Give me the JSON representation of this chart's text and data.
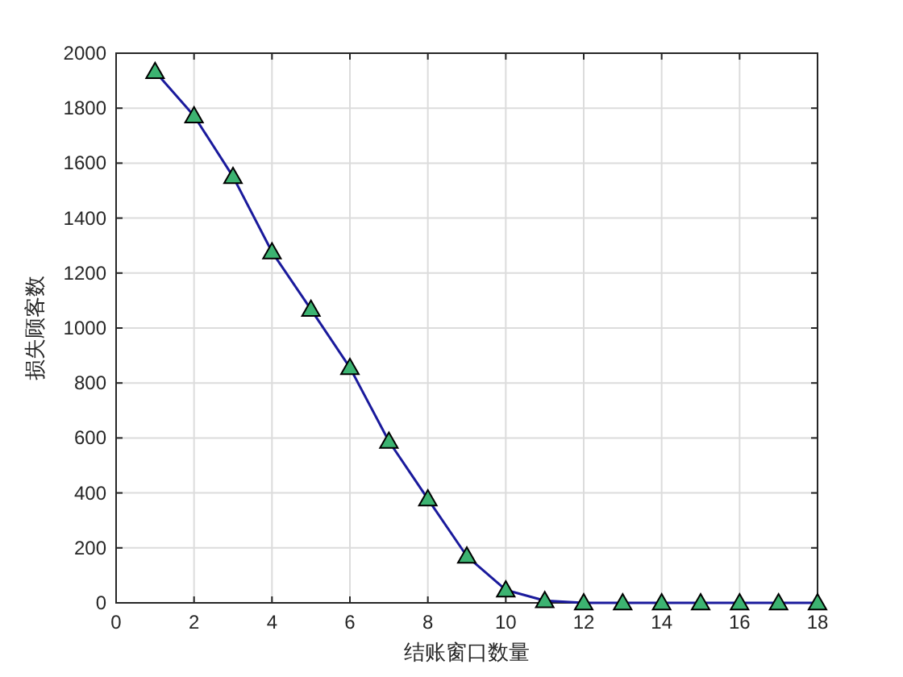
{
  "chart_data": {
    "type": "line",
    "xlabel": "结账窗口数量",
    "ylabel": "损失顾客数",
    "x": [
      1,
      2,
      3,
      4,
      5,
      6,
      7,
      8,
      9,
      10,
      11,
      12,
      13,
      14,
      15,
      16,
      17,
      18
    ],
    "series": [
      {
        "color": "#1a1a9c",
        "colors": [
          "#3cb371",
          "#3cb371",
          "#3cb371",
          "#3cb371",
          "#3cb371",
          "#3cb371",
          "#3cb371",
          "#3cb371",
          "#3cb371",
          "#3cb371",
          "#3cb371",
          "#3cb371",
          "#3cb371",
          "#3cb371",
          "#3cb371",
          "#3cb371",
          "#3cb371",
          "#3cb371"
        ],
        "values": [
          1933,
          1772,
          1551,
          1277,
          1068,
          856,
          588,
          378,
          170,
          47,
          8,
          0,
          0,
          0,
          0,
          0,
          0,
          0
        ]
      }
    ],
    "xlim": [
      0,
      18
    ],
    "xticks": [
      0,
      2,
      4,
      6,
      8,
      10,
      12,
      14,
      16,
      18
    ],
    "ylim": [
      0,
      2000
    ],
    "yticks": [
      0,
      200,
      400,
      600,
      800,
      1000,
      1200,
      1400,
      1600,
      1800,
      2000
    ],
    "grid": true,
    "marker": "triangle",
    "line_style": "solid"
  }
}
